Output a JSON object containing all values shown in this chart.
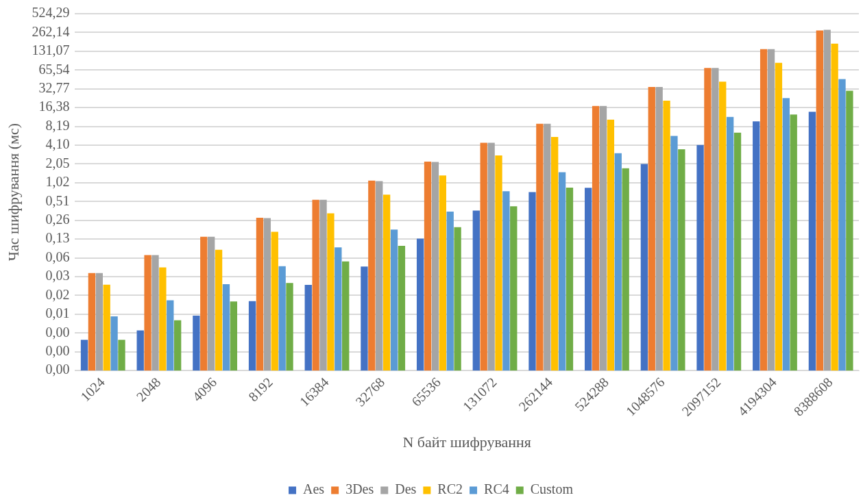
{
  "chart_data": {
    "type": "bar",
    "xlabel": "N байт шифрування",
    "ylabel": "Час шифрування (мс)",
    "categories": [
      "1024",
      "2048",
      "4096",
      "8192",
      "16384",
      "32768",
      "65536",
      "131072",
      "262144",
      "524288",
      "1048576",
      "2097152",
      "4194304",
      "8388608"
    ],
    "series": [
      {
        "name": "Aes",
        "color": "#4472c4",
        "values": [
          0.0031,
          0.0044,
          0.0076,
          0.013,
          0.0236,
          0.0465,
          0.13,
          0.367,
          0.724,
          0.849,
          2.05,
          4.12,
          9.88,
          14.0
        ]
      },
      {
        "name": "3Des",
        "color": "#ed7d31",
        "values": [
          0.0365,
          0.071,
          0.139,
          0.282,
          0.546,
          1.11,
          2.24,
          4.48,
          9.02,
          17.4,
          35.1,
          70.7,
          142,
          283
        ]
      },
      {
        "name": "Des",
        "color": "#a5a5a5",
        "values": [
          0.0365,
          0.071,
          0.139,
          0.277,
          0.546,
          1.09,
          2.2,
          4.48,
          9.02,
          17.4,
          35.1,
          70.7,
          142,
          289
        ]
      },
      {
        "name": "RC2",
        "color": "#ffc000",
        "values": [
          0.0238,
          0.045,
          0.086,
          0.168,
          0.331,
          0.66,
          1.34,
          2.8,
          5.56,
          10.5,
          21.2,
          42.7,
          85.3,
          174
        ]
      },
      {
        "name": "RC4",
        "color": "#5b9bd5",
        "values": [
          0.0074,
          0.0134,
          0.0243,
          0.047,
          0.094,
          0.182,
          0.352,
          0.749,
          1.51,
          3.04,
          5.75,
          11.6,
          23.3,
          47.0
        ]
      },
      {
        "name": "Custom",
        "color": "#70ad47",
        "values": [
          0.0031,
          0.0064,
          0.0128,
          0.0253,
          0.056,
          0.0996,
          0.198,
          0.43,
          0.856,
          1.75,
          3.52,
          6.51,
          12.7,
          30.6
        ]
      }
    ],
    "log": "y",
    "ylim": [
      0.001,
      524.288
    ],
    "yticks": [
      {
        "value": 0.001,
        "label": "0,00"
      },
      {
        "value": 0.002,
        "label": "0,00"
      },
      {
        "value": 0.004,
        "label": "0,00"
      },
      {
        "value": 0.008,
        "label": "0,01"
      },
      {
        "value": 0.016,
        "label": "0,02"
      },
      {
        "value": 0.032,
        "label": "0,03"
      },
      {
        "value": 0.064,
        "label": "0,06"
      },
      {
        "value": 0.128,
        "label": "0,13"
      },
      {
        "value": 0.256,
        "label": "0,26"
      },
      {
        "value": 0.512,
        "label": "0,51"
      },
      {
        "value": 1.024,
        "label": "1,02"
      },
      {
        "value": 2.048,
        "label": "2,05"
      },
      {
        "value": 4.096,
        "label": "4,10"
      },
      {
        "value": 8.192,
        "label": "8,19"
      },
      {
        "value": 16.384,
        "label": "16,38"
      },
      {
        "value": 32.768,
        "label": "32,77"
      },
      {
        "value": 65.536,
        "label": "65,54"
      },
      {
        "value": 131.072,
        "label": "131,07"
      },
      {
        "value": 262.144,
        "label": "262,14"
      },
      {
        "value": 524.288,
        "label": "524,29"
      }
    ],
    "grid": "y",
    "legend": "bottom"
  }
}
